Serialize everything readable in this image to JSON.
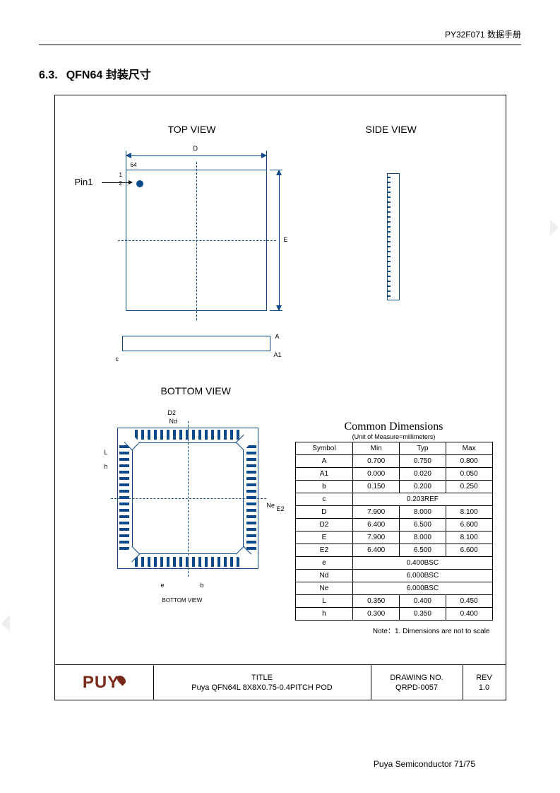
{
  "header": {
    "doc": "PY32F071 数据手册"
  },
  "section": {
    "num": "6.3.",
    "title": "QFN64 封装尺寸"
  },
  "views": {
    "top": "TOP VIEW",
    "side": "SIDE VIEW",
    "bottom": "BOTTOM VIEW",
    "bottom_caption": "BOTTOM VIEW",
    "pin1": "Pin1",
    "pin_64": "64",
    "pin_1": "1",
    "pin_2": "2",
    "D": "D",
    "E": "E",
    "A": "A",
    "A1": "A1",
    "c": "c",
    "D2": "D2",
    "Nd": "Nd",
    "E2": "E2",
    "Ne": "Ne",
    "L": "L",
    "h": "h",
    "e": "e",
    "b": "b"
  },
  "dim_table": {
    "title": "Common Dimensions",
    "subtitle": "(Unit of Measure=millimeters)",
    "columns": [
      "Symbol",
      "Min",
      "Typ",
      "Max"
    ],
    "rows": [
      {
        "sym": "A",
        "min": "0.700",
        "typ": "0.750",
        "max": "0.800"
      },
      {
        "sym": "A1",
        "min": "0.000",
        "typ": "0.020",
        "max": "0.050"
      },
      {
        "sym": "b",
        "min": "0.150",
        "typ": "0.200",
        "max": "0.250"
      },
      {
        "sym": "c",
        "span": "0.203REF"
      },
      {
        "sym": "D",
        "min": "7.900",
        "typ": "8.000",
        "max": "8.100"
      },
      {
        "sym": "D2",
        "min": "6.400",
        "typ": "6.500",
        "max": "6.600"
      },
      {
        "sym": "E",
        "min": "7.900",
        "typ": "8.000",
        "max": "8.100"
      },
      {
        "sym": "E2",
        "min": "6.400",
        "typ": "6.500",
        "max": "6.600"
      },
      {
        "sym": "e",
        "span": "0.400BSC"
      },
      {
        "sym": "Nd",
        "span": "6.000BSC"
      },
      {
        "sym": "Ne",
        "span": "6.000BSC"
      },
      {
        "sym": "L",
        "min": "0.350",
        "typ": "0.400",
        "max": "0.450"
      },
      {
        "sym": "h",
        "min": "0.300",
        "typ": "0.350",
        "max": "0.400"
      }
    ],
    "note": "Note：1. Dimensions are not to scale"
  },
  "titleblock": {
    "logo": "PUY",
    "title_h": "TITLE",
    "title_v": "Puya QFN64L 8X8X0.75-0.4PITCH POD",
    "drawing_h": "DRAWING NO.",
    "drawing_v": "QRPD-0057",
    "rev_h": "REV",
    "rev_v": "1.0"
  },
  "footer": {
    "text": "Puya Semiconductor 71/75"
  },
  "colors": {
    "line": "#0a4a8a",
    "logo": "#7a2a1a"
  }
}
